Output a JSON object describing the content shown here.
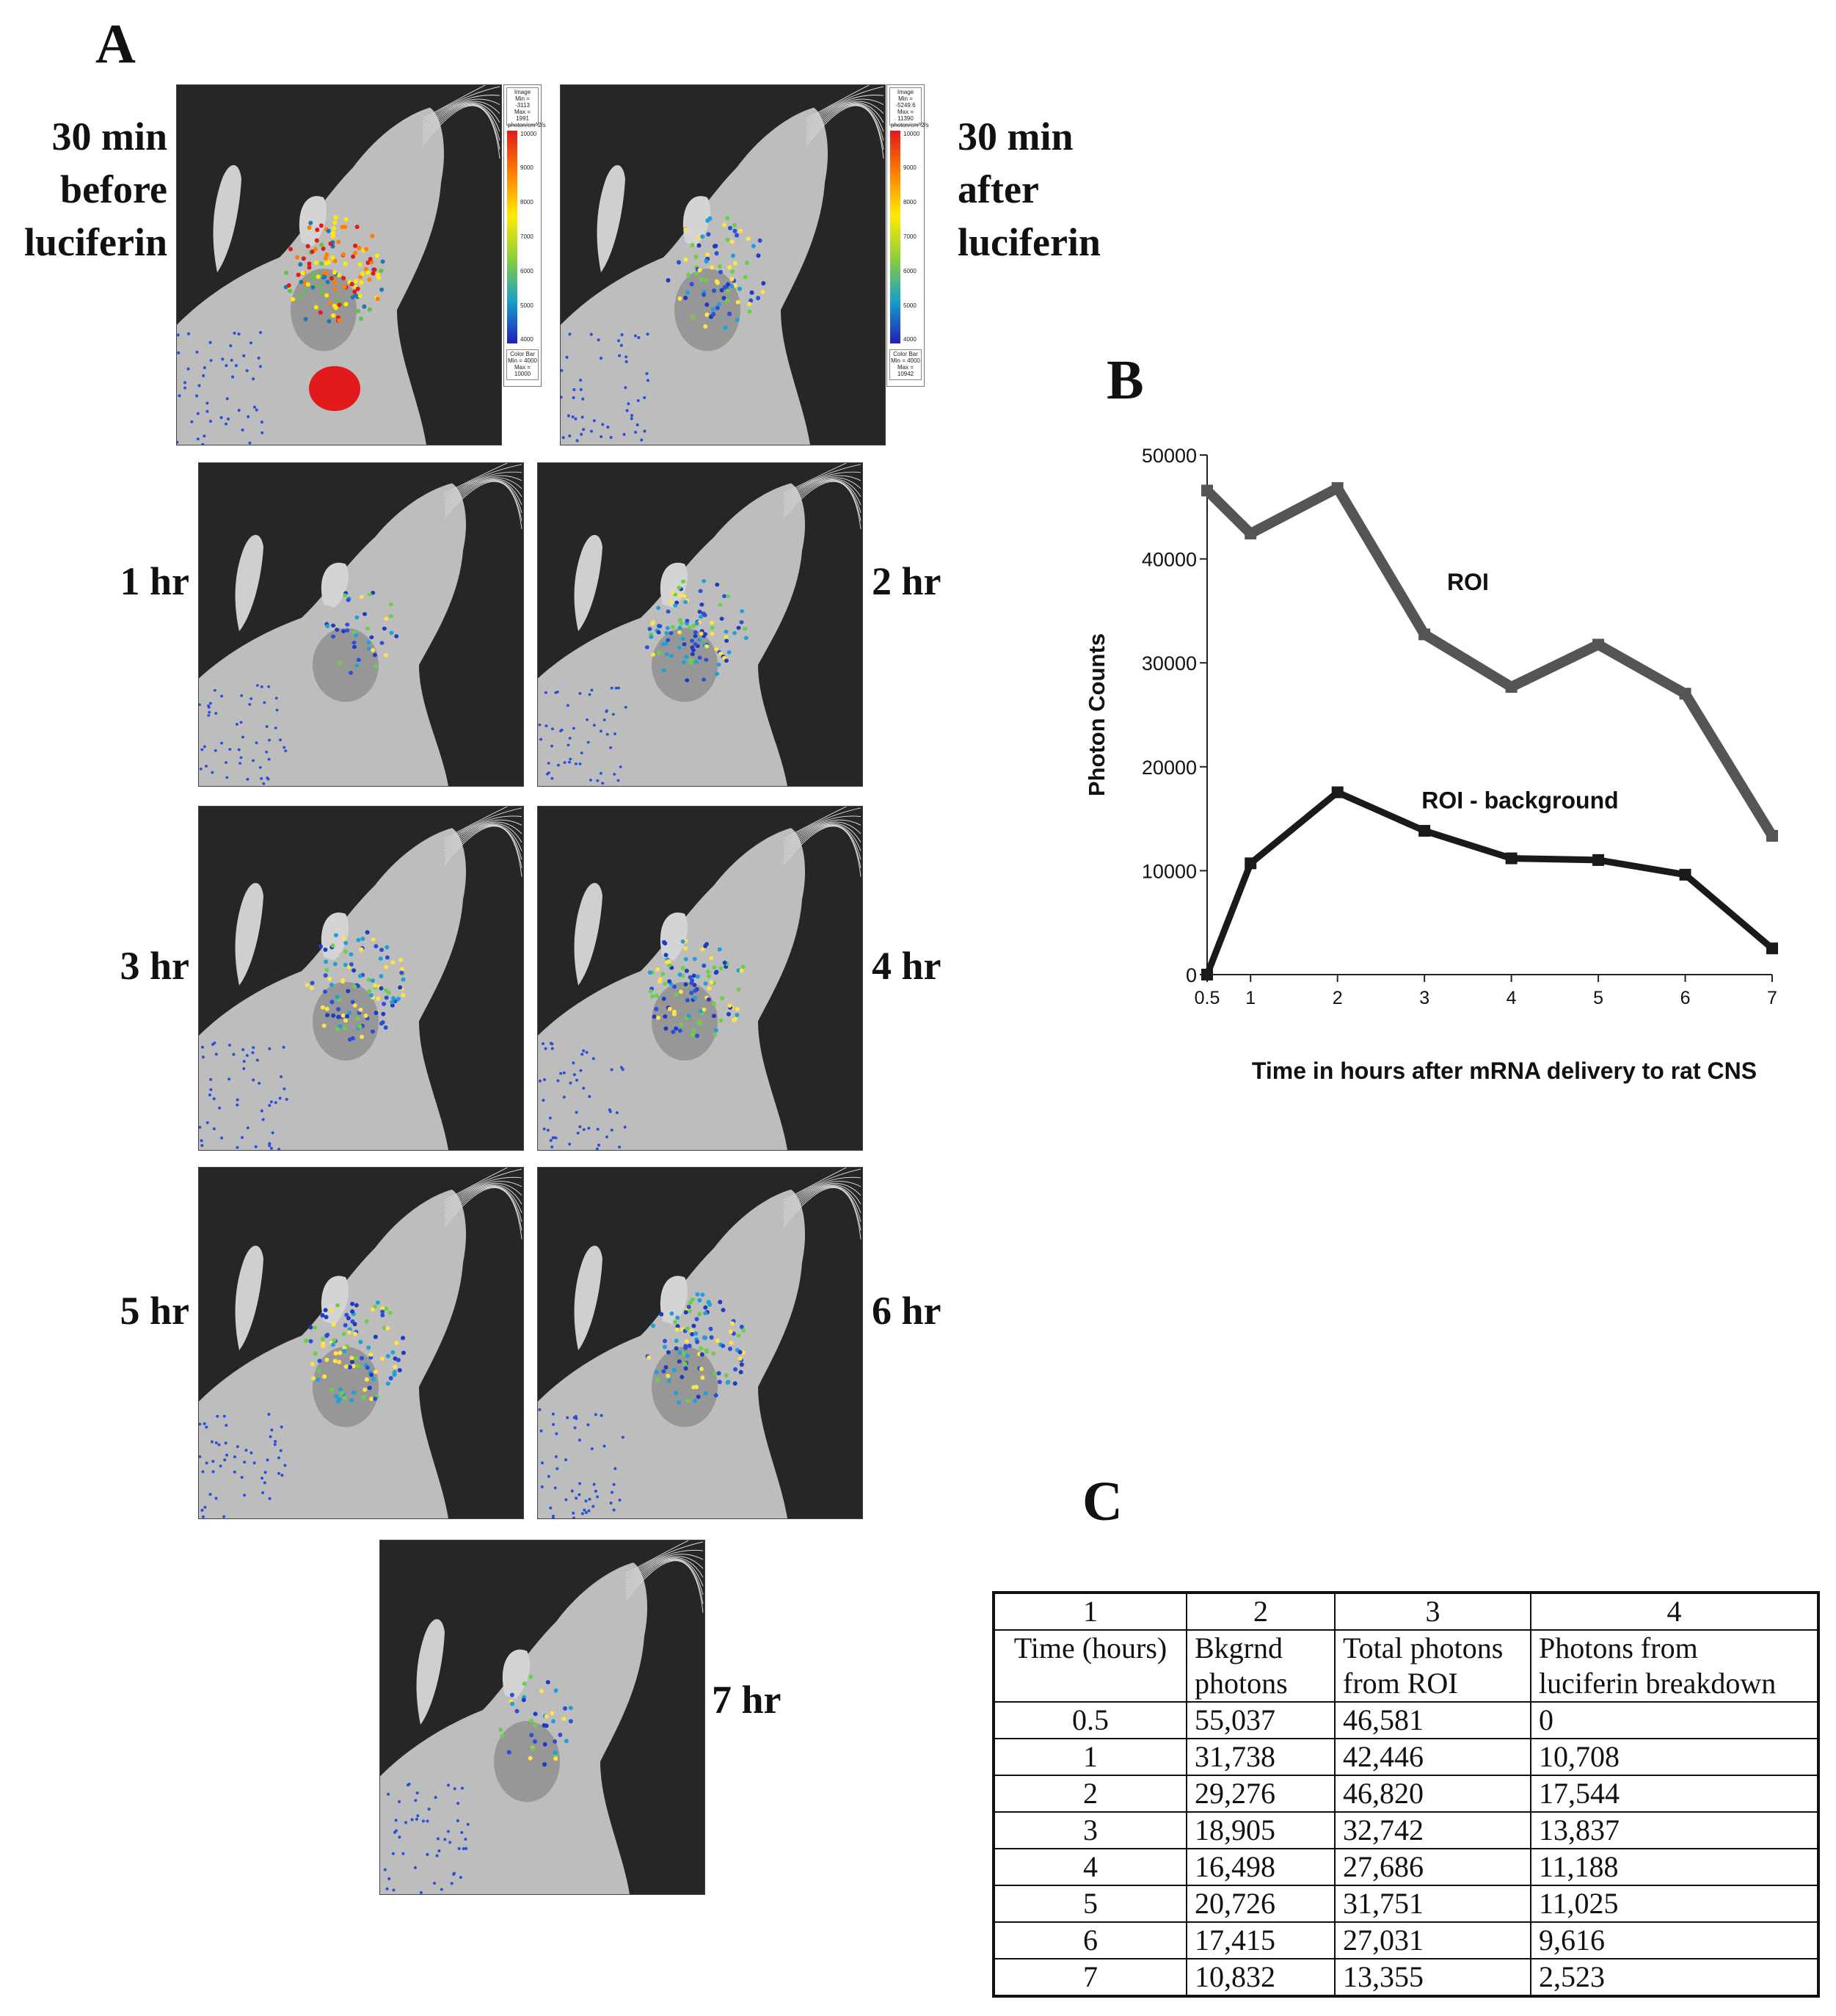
{
  "panels": {
    "a": "A",
    "b": "B",
    "c": "C"
  },
  "images": [
    {
      "label_lines": [
        "30 min",
        "before",
        "luciferin"
      ],
      "signal": "strong"
    },
    {
      "label_lines": [
        "30 min",
        "after",
        "luciferin"
      ],
      "signal": "medium"
    },
    {
      "label_lines": [
        "1 hr"
      ],
      "signal": "faint"
    },
    {
      "label_lines": [
        "2 hr"
      ],
      "signal": "mid"
    },
    {
      "label_lines": [
        "3 hr"
      ],
      "signal": "mid"
    },
    {
      "label_lines": [
        "4 hr"
      ],
      "signal": "mid"
    },
    {
      "label_lines": [
        "5 hr"
      ],
      "signal": "mid"
    },
    {
      "label_lines": [
        "6 hr"
      ],
      "signal": "mid"
    },
    {
      "label_lines": [
        "7 hr"
      ],
      "signal": "faint"
    }
  ],
  "legend_left": {
    "top_box": [
      "Image",
      "Min = -3113",
      "Max = 1991",
      "photon/cm^2/s"
    ],
    "ticks": [
      "10000",
      "9000",
      "8000",
      "7000",
      "6000",
      "5000",
      "4000"
    ],
    "bottom_box": [
      "Color Bar",
      "Min = 4000",
      "Max = 10000"
    ]
  },
  "legend_right": {
    "top_box": [
      "Image",
      "Min = -5249.6",
      "Max = 11390",
      "photon/cm^2/s"
    ],
    "ticks": [
      "10000",
      "9000",
      "8000",
      "7000",
      "6000",
      "5000",
      "4000"
    ],
    "bottom_box": [
      "Color Bar",
      "Min = 4000",
      "Max = 10942"
    ]
  },
  "chart_data": {
    "type": "line",
    "title": "",
    "xlabel": "Time in hours after mRNA delivery to rat CNS",
    "ylabel": "Photon Counts",
    "categories": [
      "0.5",
      "1",
      "2",
      "3",
      "4",
      "5",
      "6",
      "7"
    ],
    "yticks": [
      "0",
      "10000",
      "20000",
      "30000",
      "40000",
      "50000"
    ],
    "ylim": [
      0,
      50000
    ],
    "series": [
      {
        "name": "ROI",
        "color": "#555555",
        "values": [
          46581,
          42446,
          46820,
          32742,
          27686,
          31751,
          27031,
          13355
        ]
      },
      {
        "name": "ROI - background",
        "color": "#1a1a1a",
        "values": [
          0,
          10708,
          17544,
          13837,
          11188,
          11025,
          9616,
          2523
        ]
      }
    ]
  },
  "table": {
    "col_numbers": [
      "1",
      "2",
      "3",
      "4"
    ],
    "headers": [
      [
        "Time (hours)"
      ],
      [
        "Bkgrnd",
        "photons"
      ],
      [
        "Total photons",
        "from ROI"
      ],
      [
        "Photons from",
        "luciferin breakdown"
      ]
    ],
    "rows": [
      [
        "0.5",
        "55,037",
        "46,581",
        "0"
      ],
      [
        "1",
        "31,738",
        "42,446",
        "10,708"
      ],
      [
        "2",
        "29,276",
        "46,820",
        "17,544"
      ],
      [
        "3",
        "18,905",
        "32,742",
        "13,837"
      ],
      [
        "4",
        "16,498",
        "27,686",
        "11,188"
      ],
      [
        "5",
        "20,726",
        "31,751",
        "11,025"
      ],
      [
        "6",
        "17,415",
        "27,031",
        "9,616"
      ],
      [
        "7",
        "10,832",
        "13,355",
        "2,523"
      ]
    ]
  }
}
